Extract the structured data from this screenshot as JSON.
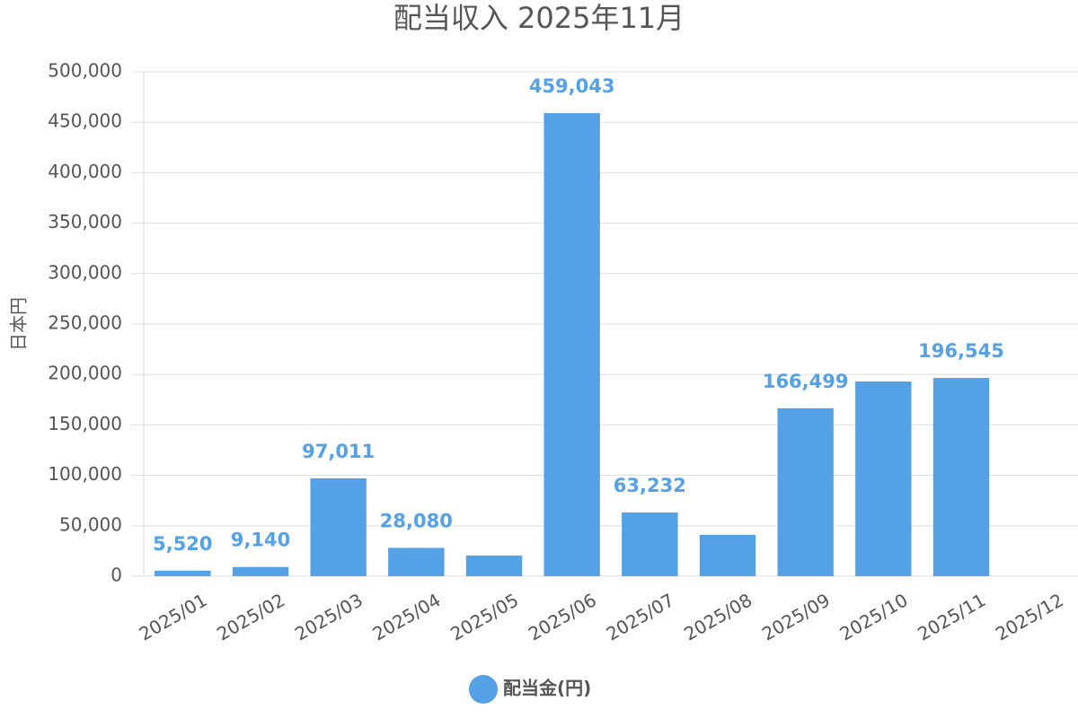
{
  "chart_data": {
    "type": "bar",
    "title": "配当収入 2025年11月",
    "y_label": "日本円",
    "categories": [
      "2025/01",
      "2025/02",
      "2025/03",
      "2025/04",
      "2025/05",
      "2025/06",
      "2025/07",
      "2025/08",
      "2025/09",
      "2025/10",
      "2025/11",
      "2025/12"
    ],
    "series": [
      {
        "name": "配当金(円)",
        "color": "#55a1e5",
        "values": [
          5520,
          9140,
          97011,
          28080,
          20500,
          459043,
          63232,
          41000,
          166499,
          193000,
          196545,
          null
        ],
        "value_labels": [
          "5,520",
          "9,140",
          "97,011",
          "28,080",
          null,
          "459,043",
          "63,232",
          null,
          "166,499",
          null,
          "196,545",
          null
        ]
      }
    ],
    "ylim": [
      0,
      500000
    ],
    "yticks": [
      0,
      {
        "value": 50000,
        "label": "50,000"
      },
      {
        "value": 100000,
        "label": "100,000"
      },
      {
        "value": 150000,
        "label": "150,000"
      },
      {
        "value": 200000,
        "label": "200,000"
      },
      {
        "value": 250000,
        "label": "250,000"
      },
      {
        "value": 300000,
        "label": "300,000"
      },
      {
        "value": 350000,
        "label": "350,000"
      },
      {
        "value": 400000,
        "label": "400,000"
      },
      {
        "value": 450000,
        "label": "450,000"
      },
      {
        "value": 500000,
        "label": "500,000"
      }
    ],
    "grid": true,
    "legend": "bottom"
  }
}
